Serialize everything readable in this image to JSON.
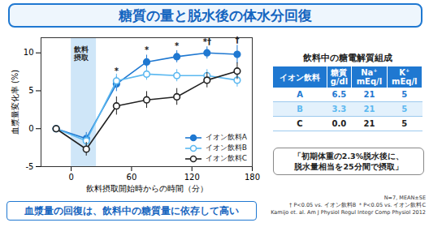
{
  "chart_data": {
    "type": "line",
    "title": "糖質の量と脱水後の体水分回復",
    "subtitle": "血漿量の回復は、飲料中の糖質量に依存して高い",
    "x_label": "飲料摂取開始時からの時間（分）",
    "y_label": "血漿量変化率 (%)",
    "x": [
      -15,
      15,
      45,
      75,
      105,
      135,
      165
    ],
    "series": [
      {
        "name": "イオン飲料A",
        "color": "#1f78d1",
        "marker": "circle",
        "line_style": "solid",
        "values": [
          0,
          -1.3,
          5.9,
          8.8,
          9.5,
          10.0,
          9.8
        ],
        "errors": [
          0.4,
          0.8,
          1.0,
          0.9,
          0.8,
          0.8,
          1.2
        ],
        "significance": [
          null,
          null,
          "*",
          "*",
          "*",
          "*†",
          "†"
        ]
      },
      {
        "name": "イオン飲料B",
        "color": "#5bb8f0",
        "marker": "open_circle",
        "line_style": "solid",
        "values": [
          0,
          -1.6,
          6.3,
          7.2,
          7.0,
          7.0,
          6.4
        ],
        "errors": [
          0.4,
          0.8,
          0.9,
          0.8,
          0.8,
          0.8,
          0.9
        ]
      },
      {
        "name": "イオン飲料C",
        "color": "#222222",
        "marker": "open_circle",
        "line_style": "solid",
        "values": [
          0,
          -2.7,
          3.0,
          3.8,
          4.2,
          6.4,
          7.6
        ],
        "errors": [
          0.4,
          0.9,
          1.2,
          1.1,
          1.1,
          1.0,
          1.1
        ]
      }
    ],
    "shaded_region": {
      "x": [
        0,
        25
      ],
      "label": "飲料\n摂取"
    },
    "xlim": [
      -30,
      180
    ],
    "xticks": [
      0,
      60,
      120,
      180
    ],
    "ylim": [
      -5,
      12
    ],
    "yticks": [
      -5,
      0,
      5,
      10
    ],
    "grid": false,
    "legend": "bottom-right"
  },
  "table": {
    "title": "飲料中の糖電解質組成",
    "header": [
      "イオン飲料",
      "糖質\ng/dl",
      "Na⁺\nmEq/l",
      "K⁺\nmEq/l"
    ],
    "rows": [
      {
        "cells": [
          "A",
          "6.5",
          "21",
          "5"
        ],
        "color": "#1f78d1"
      },
      {
        "cells": [
          "B",
          "3.3",
          "21",
          "5"
        ],
        "color": "#5bb8f0"
      },
      {
        "cells": [
          "C",
          "0.0",
          "21",
          "5"
        ],
        "color": "#222222"
      }
    ],
    "note": "「初期体重の2.3%脱水後に、\n脱水量相当を25分間で摂取」"
  },
  "footnotes": [
    "N=7, MEAN±SE",
    "† P<0.05 vs. イオン飲料B  ＊P<0.05 vs. イオン飲料C",
    "Kamijo et. al. Am J Physiol Regul Integr Comp Physiol 2012"
  ]
}
